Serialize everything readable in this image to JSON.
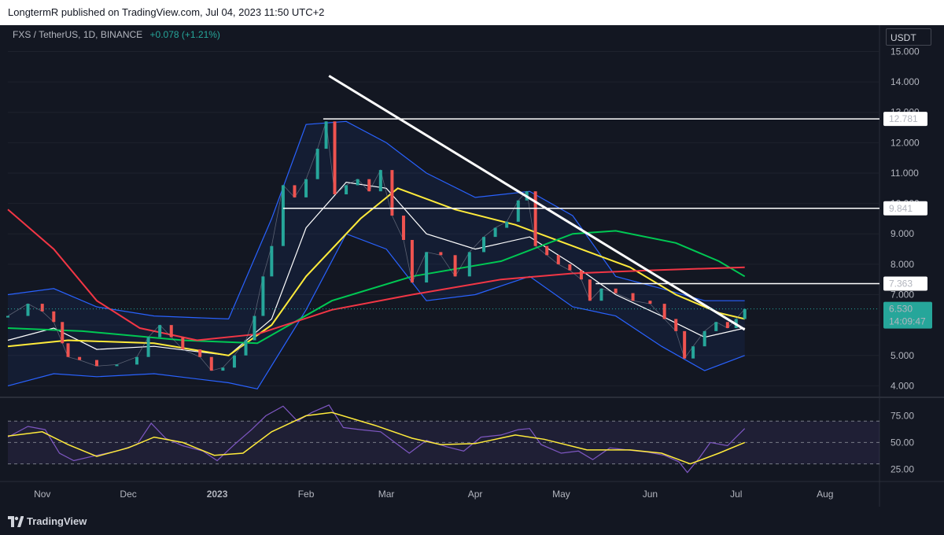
{
  "header": {
    "text": "LongtermR published on TradingView.com, Jul 04, 2023 11:50 UTC+2"
  },
  "legend": {
    "symbol": "FXS / TetherUS, 1D, BINANCE",
    "change": "+0.078 (+1.21%)"
  },
  "currency": "USDT",
  "footer": {
    "brand": "TradingView"
  },
  "chart_data": [
    {
      "type": "line",
      "title": "FXS / TetherUS, 1D, BINANCE",
      "y_ticks": [
        "15.000",
        "14.000",
        "13.000",
        "12.000",
        "11.000",
        "10.000",
        "9.000",
        "8.000",
        "7.000",
        "6.000",
        "5.000",
        "4.000"
      ],
      "x_ticks": [
        "Nov",
        "Dec",
        "2023",
        "Feb",
        "Mar",
        "Apr",
        "May",
        "Jun",
        "Jul",
        "Aug"
      ],
      "ylim": [
        3.7,
        15.4
      ],
      "price_close": [
        [
          "2022-10-20",
          6.3
        ],
        [
          "2022-10-27",
          6.7
        ],
        [
          "2022-11-01",
          6.45
        ],
        [
          "2022-11-05",
          6.1
        ],
        [
          "2022-11-08",
          5.4
        ],
        [
          "2022-11-10",
          4.95
        ],
        [
          "2022-11-14",
          4.85
        ],
        [
          "2022-11-20",
          4.65
        ],
        [
          "2022-11-27",
          4.7
        ],
        [
          "2022-12-04",
          4.95
        ],
        [
          "2022-12-08",
          5.6
        ],
        [
          "2022-12-12",
          6.0
        ],
        [
          "2022-12-16",
          5.6
        ],
        [
          "2022-12-20",
          5.2
        ],
        [
          "2022-12-26",
          4.95
        ],
        [
          "2022-12-30",
          4.5
        ],
        [
          "2023-01-03",
          4.6
        ],
        [
          "2023-01-07",
          5.0
        ],
        [
          "2023-01-11",
          5.5
        ],
        [
          "2023-01-14",
          6.3
        ],
        [
          "2023-01-17",
          7.6
        ],
        [
          "2023-01-20",
          8.6
        ],
        [
          "2023-01-24",
          10.6
        ],
        [
          "2023-01-28",
          10.2
        ],
        [
          "2023-02-01",
          10.8
        ],
        [
          "2023-02-05",
          11.8
        ],
        [
          "2023-02-08",
          12.7
        ],
        [
          "2023-02-11",
          10.3
        ],
        [
          "2023-02-15",
          10.6
        ],
        [
          "2023-02-19",
          10.8
        ],
        [
          "2023-02-23",
          10.4
        ],
        [
          "2023-02-27",
          11.1
        ],
        [
          "2023-03-03",
          9.6
        ],
        [
          "2023-03-07",
          8.8
        ],
        [
          "2023-03-10",
          7.4
        ],
        [
          "2023-03-15",
          8.4
        ],
        [
          "2023-03-20",
          8.3
        ],
        [
          "2023-03-25",
          7.6
        ],
        [
          "2023-03-30",
          8.4
        ],
        [
          "2023-04-04",
          8.9
        ],
        [
          "2023-04-08",
          9.2
        ],
        [
          "2023-04-12",
          9.4
        ],
        [
          "2023-04-16",
          10.1
        ],
        [
          "2023-04-19",
          10.4
        ],
        [
          "2023-04-22",
          8.6
        ],
        [
          "2023-04-26",
          8.3
        ],
        [
          "2023-04-30",
          8.0
        ],
        [
          "2023-05-04",
          7.8
        ],
        [
          "2023-05-08",
          7.5
        ],
        [
          "2023-05-11",
          6.8
        ],
        [
          "2023-05-15",
          7.2
        ],
        [
          "2023-05-20",
          7.05
        ],
        [
          "2023-05-26",
          6.8
        ],
        [
          "2023-06-01",
          6.7
        ],
        [
          "2023-06-06",
          6.2
        ],
        [
          "2023-06-10",
          5.8
        ],
        [
          "2023-06-13",
          4.9
        ],
        [
          "2023-06-16",
          5.3
        ],
        [
          "2023-06-20",
          5.8
        ],
        [
          "2023-06-24",
          6.1
        ],
        [
          "2023-06-28",
          5.9
        ],
        [
          "2023-07-01",
          6.2
        ],
        [
          "2023-07-04",
          6.53
        ]
      ],
      "overlays": [
        {
          "color": "#2962ff",
          "values": [
            [
              "2022-10-20",
              7.0
            ],
            [
              "2022-11-05",
              7.2
            ],
            [
              "2022-11-20",
              6.6
            ],
            [
              "2022-12-10",
              6.3
            ],
            [
              "2023-01-05",
              6.2
            ],
            [
              "2023-01-20",
              9.5
            ],
            [
              "2023-02-01",
              12.6
            ],
            [
              "2023-02-15",
              12.7
            ],
            [
              "2023-03-01",
              12.0
            ],
            [
              "2023-03-15",
              11.0
            ],
            [
              "2023-04-01",
              10.2
            ],
            [
              "2023-04-20",
              10.4
            ],
            [
              "2023-05-05",
              9.6
            ],
            [
              "2023-05-20",
              7.6
            ],
            [
              "2023-06-05",
              7.2
            ],
            [
              "2023-06-20",
              6.8
            ],
            [
              "2023-07-04",
              6.8
            ]
          ]
        },
        {
          "color": "#2962ff",
          "values": [
            [
              "2022-10-20",
              4.0
            ],
            [
              "2022-11-05",
              4.4
            ],
            [
              "2022-11-20",
              4.3
            ],
            [
              "2022-12-10",
              4.4
            ],
            [
              "2023-01-05",
              4.1
            ],
            [
              "2023-01-15",
              3.9
            ],
            [
              "2023-02-01",
              6.5
            ],
            [
              "2023-02-15",
              9.0
            ],
            [
              "2023-03-01",
              8.5
            ],
            [
              "2023-03-15",
              6.8
            ],
            [
              "2023-04-01",
              7.0
            ],
            [
              "2023-04-20",
              7.6
            ],
            [
              "2023-05-05",
              6.6
            ],
            [
              "2023-05-20",
              6.3
            ],
            [
              "2023-06-05",
              5.3
            ],
            [
              "2023-06-20",
              4.5
            ],
            [
              "2023-07-04",
              5.0
            ]
          ]
        },
        {
          "color": "#ffffff",
          "values": [
            [
              "2022-10-20",
              5.5
            ],
            [
              "2022-11-05",
              5.9
            ],
            [
              "2022-11-20",
              5.2
            ],
            [
              "2022-12-10",
              5.3
            ],
            [
              "2023-01-05",
              5.0
            ],
            [
              "2023-01-20",
              6.2
            ],
            [
              "2023-02-01",
              9.2
            ],
            [
              "2023-02-15",
              10.7
            ],
            [
              "2023-03-01",
              10.5
            ],
            [
              "2023-03-15",
              9.0
            ],
            [
              "2023-04-01",
              8.5
            ],
            [
              "2023-04-20",
              8.9
            ],
            [
              "2023-05-05",
              8.0
            ],
            [
              "2023-05-20",
              7.0
            ],
            [
              "2023-06-05",
              6.3
            ],
            [
              "2023-06-20",
              5.6
            ],
            [
              "2023-07-04",
              5.9
            ]
          ]
        },
        {
          "color": "#ffeb3b",
          "values": [
            [
              "2022-10-20",
              5.3
            ],
            [
              "2022-11-10",
              5.5
            ],
            [
              "2022-12-10",
              5.4
            ],
            [
              "2023-01-05",
              5.0
            ],
            [
              "2023-01-20",
              6.0
            ],
            [
              "2023-02-01",
              7.6
            ],
            [
              "2023-02-20",
              9.5
            ],
            [
              "2023-03-05",
              10.5
            ],
            [
              "2023-03-25",
              9.8
            ],
            [
              "2023-04-15",
              9.3
            ],
            [
              "2023-05-05",
              8.6
            ],
            [
              "2023-05-25",
              7.9
            ],
            [
              "2023-06-10",
              7.0
            ],
            [
              "2023-06-25",
              6.4
            ],
            [
              "2023-07-04",
              6.2
            ]
          ]
        },
        {
          "color": "#00c853",
          "values": [
            [
              "2022-10-20",
              5.9
            ],
            [
              "2022-11-15",
              5.8
            ],
            [
              "2022-12-20",
              5.5
            ],
            [
              "2023-01-15",
              5.4
            ],
            [
              "2023-02-10",
              6.8
            ],
            [
              "2023-03-10",
              7.6
            ],
            [
              "2023-04-10",
              8.1
            ],
            [
              "2023-05-05",
              9.0
            ],
            [
              "2023-05-20",
              9.1
            ],
            [
              "2023-06-10",
              8.7
            ],
            [
              "2023-06-25",
              8.1
            ],
            [
              "2023-07-04",
              7.6
            ]
          ]
        },
        {
          "color": "#f23645",
          "values": [
            [
              "2022-10-20",
              9.8
            ],
            [
              "2022-11-05",
              8.5
            ],
            [
              "2022-11-20",
              6.8
            ],
            [
              "2022-12-05",
              5.9
            ],
            [
              "2022-12-25",
              5.5
            ],
            [
              "2023-01-15",
              5.7
            ],
            [
              "2023-02-10",
              6.5
            ],
            [
              "2023-03-10",
              7.0
            ],
            [
              "2023-04-10",
              7.5
            ],
            [
              "2023-05-05",
              7.7
            ],
            [
              "2023-06-01",
              7.8
            ],
            [
              "2023-07-04",
              7.9
            ]
          ]
        }
      ],
      "trendline": [
        [
          "2023-02-09",
          14.2
        ],
        [
          "2023-07-04",
          5.85
        ]
      ],
      "horizontal_levels": [
        {
          "label": "12.781",
          "value": 12.781,
          "from": "2023-02-07"
        },
        {
          "label": "9.841",
          "value": 9.841,
          "from": "2023-01-24"
        },
        {
          "label": "7.363",
          "value": 7.363,
          "from": "2023-05-13"
        }
      ],
      "current_price": {
        "label": "6.530",
        "value": 6.53,
        "countdown": "14:09:47",
        "color": "#26a69a"
      }
    },
    {
      "type": "line",
      "y_ticks": [
        "75.00",
        "50.00",
        "25.00"
      ],
      "ylim": [
        15,
        90
      ],
      "bands": [
        70,
        50,
        30
      ],
      "series": [
        {
          "color": "#7e57c2",
          "values": [
            [
              "2022-10-20",
              55
            ],
            [
              "2022-10-27",
              65
            ],
            [
              "2022-11-02",
              62
            ],
            [
              "2022-11-07",
              40
            ],
            [
              "2022-11-12",
              33
            ],
            [
              "2022-11-20",
              38
            ],
            [
              "2022-11-27",
              42
            ],
            [
              "2022-12-04",
              48
            ],
            [
              "2022-12-09",
              68
            ],
            [
              "2022-12-14",
              54
            ],
            [
              "2022-12-20",
              47
            ],
            [
              "2022-12-27",
              42
            ],
            [
              "2023-01-01",
              33
            ],
            [
              "2023-01-07",
              48
            ],
            [
              "2023-01-13",
              62
            ],
            [
              "2023-01-18",
              75
            ],
            [
              "2023-01-24",
              84
            ],
            [
              "2023-01-29",
              70
            ],
            [
              "2023-02-03",
              78
            ],
            [
              "2023-02-09",
              85
            ],
            [
              "2023-02-14",
              64
            ],
            [
              "2023-02-20",
              62
            ],
            [
              "2023-02-27",
              60
            ],
            [
              "2023-03-04",
              50
            ],
            [
              "2023-03-09",
              40
            ],
            [
              "2023-03-15",
              52
            ],
            [
              "2023-03-22",
              46
            ],
            [
              "2023-03-28",
              42
            ],
            [
              "2023-04-03",
              55
            ],
            [
              "2023-04-10",
              57
            ],
            [
              "2023-04-16",
              62
            ],
            [
              "2023-04-20",
              63
            ],
            [
              "2023-04-24",
              48
            ],
            [
              "2023-05-01",
              40
            ],
            [
              "2023-05-07",
              42
            ],
            [
              "2023-05-12",
              34
            ],
            [
              "2023-05-18",
              45
            ],
            [
              "2023-05-24",
              43
            ],
            [
              "2023-05-31",
              41
            ],
            [
              "2023-06-06",
              38
            ],
            [
              "2023-06-11",
              32
            ],
            [
              "2023-06-14",
              22
            ],
            [
              "2023-06-18",
              35
            ],
            [
              "2023-06-22",
              50
            ],
            [
              "2023-06-28",
              47
            ],
            [
              "2023-07-04",
              63
            ]
          ]
        },
        {
          "color": "#ffeb3b",
          "values": [
            [
              "2022-10-20",
              56
            ],
            [
              "2022-11-01",
              60
            ],
            [
              "2022-11-10",
              48
            ],
            [
              "2022-11-20",
              37
            ],
            [
              "2022-12-01",
              45
            ],
            [
              "2022-12-10",
              55
            ],
            [
              "2022-12-20",
              50
            ],
            [
              "2022-12-31",
              38
            ],
            [
              "2023-01-10",
              40
            ],
            [
              "2023-01-20",
              60
            ],
            [
              "2023-02-01",
              75
            ],
            [
              "2023-02-10",
              78
            ],
            [
              "2023-02-25",
              66
            ],
            [
              "2023-03-10",
              54
            ],
            [
              "2023-03-20",
              48
            ],
            [
              "2023-04-01",
              49
            ],
            [
              "2023-04-15",
              57
            ],
            [
              "2023-04-25",
              53
            ],
            [
              "2023-05-10",
              43
            ],
            [
              "2023-05-25",
              43
            ],
            [
              "2023-06-05",
              40
            ],
            [
              "2023-06-15",
              30
            ],
            [
              "2023-06-25",
              40
            ],
            [
              "2023-07-04",
              50
            ]
          ]
        }
      ]
    }
  ],
  "x_axis_labels": [
    "Nov",
    "Dec",
    "2023",
    "Feb",
    "Mar",
    "Apr",
    "May",
    "Jun",
    "Jul",
    "Aug"
  ]
}
